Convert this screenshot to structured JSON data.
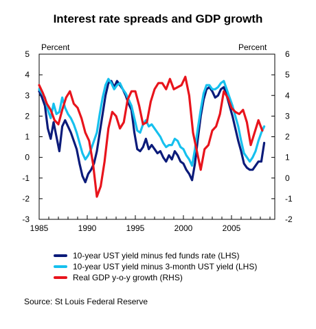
{
  "chart_data": {
    "type": "line",
    "title": "Interest rate spreads and GDP growth",
    "y_left_label": "Percent",
    "y_right_label": "Percent",
    "x_ticks": [
      "1985",
      "1990",
      "1995",
      "2000",
      "2005"
    ],
    "y_left_ticks": [
      "-3",
      "-2",
      "-1",
      "0",
      "1",
      "2",
      "3",
      "4",
      "5"
    ],
    "y_right_ticks": [
      "-2",
      "-1",
      "0",
      "1",
      "2",
      "3",
      "4",
      "5",
      "6"
    ],
    "xlim": [
      1985,
      2009.5
    ],
    "ylim_left": [
      -3,
      5
    ],
    "ylim_right": [
      -2,
      6
    ],
    "grid": false,
    "legend_position": "bottom",
    "source": "Source: St Louis Federal Reserve",
    "series": [
      {
        "name": "10-year UST yield minus fed funds rate (LHS)",
        "axis": "left",
        "color": "#0b1b7a",
        "x": [
          1985.0,
          1985.3,
          1985.6,
          1985.9,
          1986.2,
          1986.5,
          1986.8,
          1987.1,
          1987.4,
          1987.7,
          1988.0,
          1988.3,
          1988.6,
          1988.9,
          1989.2,
          1989.5,
          1989.8,
          1990.1,
          1990.4,
          1990.7,
          1991.0,
          1991.3,
          1991.6,
          1991.9,
          1992.2,
          1992.5,
          1992.8,
          1993.1,
          1993.4,
          1993.7,
          1994.0,
          1994.3,
          1994.6,
          1994.9,
          1995.2,
          1995.5,
          1995.8,
          1996.1,
          1996.4,
          1996.7,
          1997.0,
          1997.3,
          1997.6,
          1997.9,
          1998.2,
          1998.5,
          1998.8,
          1999.1,
          1999.4,
          1999.7,
          2000.0,
          2000.3,
          2000.6,
          2000.9,
          2001.2,
          2001.5,
          2001.8,
          2002.1,
          2002.4,
          2002.7,
          2003.0,
          2003.3,
          2003.6,
          2003.9,
          2004.2,
          2004.5,
          2004.8,
          2005.1,
          2005.4,
          2005.7,
          2006.0,
          2006.3,
          2006.6,
          2006.9,
          2007.2,
          2007.5,
          2007.8,
          2008.1,
          2008.4
        ],
        "values": [
          3.2,
          2.9,
          2.5,
          1.4,
          0.9,
          1.7,
          1.0,
          0.3,
          1.5,
          1.8,
          1.5,
          1.2,
          0.8,
          0.4,
          -0.3,
          -0.9,
          -1.2,
          -0.8,
          -0.6,
          -0.3,
          0.3,
          1.2,
          2.1,
          3.0,
          3.6,
          3.7,
          3.4,
          3.7,
          3.5,
          3.3,
          3.0,
          2.6,
          2.3,
          1.2,
          0.4,
          0.3,
          0.5,
          0.9,
          0.4,
          0.6,
          0.4,
          0.2,
          0.3,
          0.0,
          -0.2,
          0.1,
          -0.1,
          0.3,
          0.1,
          -0.2,
          -0.3,
          -0.6,
          -0.8,
          -1.1,
          -0.3,
          0.9,
          2.0,
          2.8,
          3.3,
          3.4,
          3.2,
          2.9,
          3.0,
          3.3,
          3.4,
          3.0,
          2.5,
          2.0,
          1.4,
          0.8,
          0.3,
          -0.3,
          -0.5,
          -0.6,
          -0.6,
          -0.4,
          -0.2,
          -0.2,
          0.7
        ]
      },
      {
        "name": "10-year UST yield minus 3-month UST yield (LHS)",
        "axis": "left",
        "color": "#16c0ee",
        "x": [
          1985.0,
          1985.3,
          1985.6,
          1985.9,
          1986.2,
          1986.5,
          1986.8,
          1987.1,
          1987.4,
          1987.7,
          1988.0,
          1988.3,
          1988.6,
          1988.9,
          1989.2,
          1989.5,
          1989.8,
          1990.1,
          1990.4,
          1990.7,
          1991.0,
          1991.3,
          1991.6,
          1991.9,
          1992.2,
          1992.5,
          1992.8,
          1993.1,
          1993.4,
          1993.7,
          1994.0,
          1994.3,
          1994.6,
          1994.9,
          1995.2,
          1995.5,
          1995.8,
          1996.1,
          1996.4,
          1996.7,
          1997.0,
          1997.3,
          1997.6,
          1997.9,
          1998.2,
          1998.5,
          1998.8,
          1999.1,
          1999.4,
          1999.7,
          2000.0,
          2000.3,
          2000.6,
          2000.9,
          2001.2,
          2001.5,
          2001.8,
          2002.1,
          2002.4,
          2002.7,
          2003.0,
          2003.3,
          2003.6,
          2003.9,
          2004.2,
          2004.5,
          2004.8,
          2005.1,
          2005.4,
          2005.7,
          2006.0,
          2006.3,
          2006.6,
          2006.9,
          2007.2,
          2007.5,
          2007.8,
          2008.1,
          2008.4
        ],
        "values": [
          3.3,
          3.1,
          2.9,
          2.3,
          1.9,
          2.6,
          2.1,
          2.2,
          2.9,
          2.4,
          2.1,
          1.9,
          1.6,
          1.2,
          0.7,
          0.2,
          -0.1,
          0.1,
          0.4,
          0.8,
          1.2,
          2.1,
          2.9,
          3.5,
          3.8,
          3.6,
          3.3,
          3.5,
          3.6,
          3.3,
          3.1,
          2.8,
          2.5,
          1.9,
          1.3,
          1.2,
          1.6,
          1.8,
          1.5,
          1.6,
          1.4,
          1.2,
          1.0,
          0.7,
          0.5,
          0.6,
          0.6,
          0.9,
          0.8,
          0.5,
          0.4,
          0.1,
          -0.1,
          -0.4,
          0.4,
          1.4,
          2.3,
          3.1,
          3.5,
          3.5,
          3.3,
          3.3,
          3.4,
          3.6,
          3.7,
          3.3,
          2.9,
          2.5,
          2.0,
          1.5,
          0.8,
          0.2,
          0.0,
          -0.2,
          0.0,
          0.3,
          0.8,
          1.2,
          1.5
        ]
      },
      {
        "name": "Real GDP y-o-y growth (RHS)",
        "axis": "right",
        "color": "#e8141c",
        "x": [
          1985.0,
          1985.4,
          1985.8,
          1986.2,
          1986.6,
          1987.0,
          1987.4,
          1987.8,
          1988.2,
          1988.6,
          1989.0,
          1989.4,
          1989.8,
          1990.2,
          1990.6,
          1991.0,
          1991.4,
          1991.8,
          1992.2,
          1992.6,
          1993.0,
          1993.4,
          1993.8,
          1994.2,
          1994.6,
          1995.0,
          1995.4,
          1995.8,
          1996.2,
          1996.6,
          1997.0,
          1997.4,
          1997.8,
          1998.2,
          1998.6,
          1999.0,
          1999.4,
          1999.8,
          2000.2,
          2000.6,
          2001.0,
          2001.4,
          2001.8,
          2002.2,
          2002.6,
          2003.0,
          2003.4,
          2003.8,
          2004.2,
          2004.6,
          2005.0,
          2005.4,
          2005.8,
          2006.2,
          2006.6,
          2007.0,
          2007.4,
          2007.8,
          2008.2
        ],
        "values": [
          4.5,
          4.1,
          3.6,
          3.3,
          2.8,
          2.6,
          3.3,
          3.9,
          4.2,
          3.6,
          3.4,
          2.9,
          2.2,
          1.8,
          0.7,
          -0.9,
          -0.4,
          0.8,
          2.4,
          3.2,
          3.0,
          2.4,
          2.7,
          3.8,
          4.2,
          4.2,
          3.5,
          2.6,
          2.7,
          3.7,
          4.3,
          4.6,
          4.6,
          4.3,
          4.8,
          4.3,
          4.4,
          4.5,
          4.9,
          4.0,
          2.2,
          1.3,
          0.4,
          1.4,
          1.6,
          2.3,
          2.5,
          3.1,
          4.2,
          3.9,
          3.4,
          3.2,
          3.1,
          3.3,
          2.7,
          1.6,
          2.2,
          2.8,
          2.3
        ]
      }
    ]
  }
}
